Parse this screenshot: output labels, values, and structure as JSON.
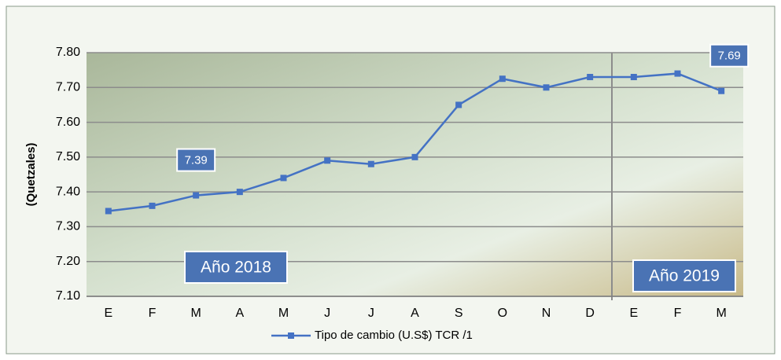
{
  "chart_data": {
    "type": "line",
    "y_label": "(Quetzales)",
    "categories": [
      "E",
      "F",
      "M",
      "A",
      "M",
      "J",
      "J",
      "A",
      "S",
      "O",
      "N",
      "D",
      "E",
      "F",
      "M"
    ],
    "series": [
      {
        "name": "Tipo de cambio (U.S$) TCR /1",
        "color": "#4472c4",
        "values": [
          7.345,
          7.36,
          7.39,
          7.4,
          7.44,
          7.49,
          7.48,
          7.5,
          7.65,
          7.725,
          7.7,
          7.73,
          7.73,
          7.74,
          7.69
        ],
        "value_labels": [
          null,
          null,
          "7.39",
          null,
          null,
          null,
          null,
          null,
          null,
          null,
          null,
          null,
          null,
          null,
          "7.69"
        ]
      }
    ],
    "annotations": [
      "Año 2018",
      "Año 2019"
    ],
    "ylim": [
      7.1,
      7.8
    ],
    "yticks": [
      {
        "value": 7.1,
        "label": "7.10"
      },
      {
        "value": 7.2,
        "label": "7.20"
      },
      {
        "value": 7.3,
        "label": "7.30"
      },
      {
        "value": 7.4,
        "label": "7.40"
      },
      {
        "value": 7.5,
        "label": "7.50"
      },
      {
        "value": 7.6,
        "label": "7.60"
      },
      {
        "value": 7.7,
        "label": "7.70"
      },
      {
        "value": 7.8,
        "label": "7.80"
      }
    ],
    "grid": true
  }
}
